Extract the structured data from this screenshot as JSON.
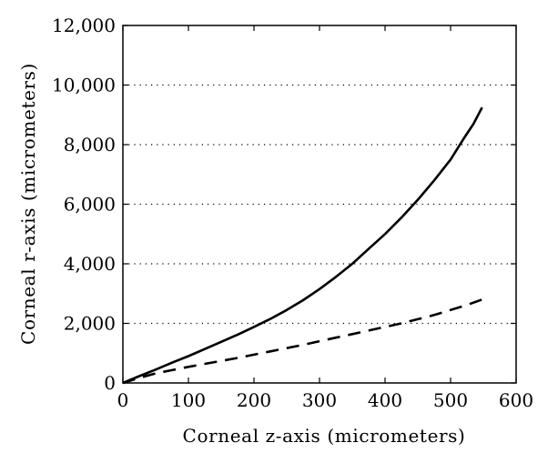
{
  "chart_data": {
    "type": "line",
    "xlabel": "Corneal z-axis (micrometers)",
    "ylabel": "Corneal r-axis (micrometers)",
    "xlim": [
      0,
      600
    ],
    "ylim": [
      0,
      12000
    ],
    "x_ticks": [
      "0",
      "100",
      "200",
      "300",
      "400",
      "500",
      "600"
    ],
    "y_ticks": [
      "0",
      "2,000",
      "4,000",
      "6,000",
      "8,000",
      "10,000",
      "12,000"
    ],
    "grid": "horizontal dotted",
    "legend": "none",
    "series": [
      {
        "style": "solid",
        "color": "#000000",
        "x": [
          0,
          25,
          50,
          75,
          100,
          125,
          150,
          175,
          200,
          225,
          250,
          275,
          300,
          325,
          350,
          375,
          400,
          425,
          450,
          475,
          500,
          520,
          535,
          548
        ],
        "y": [
          0,
          230,
          450,
          680,
          900,
          1140,
          1380,
          1620,
          1880,
          2150,
          2450,
          2780,
          3150,
          3560,
          4000,
          4500,
          5000,
          5550,
          6150,
          6800,
          7500,
          8200,
          8700,
          9250
        ]
      },
      {
        "style": "dashed",
        "color": "#000000",
        "x": [
          0,
          25,
          50,
          75,
          100,
          125,
          150,
          175,
          200,
          225,
          250,
          275,
          300,
          325,
          350,
          375,
          400,
          425,
          450,
          475,
          500,
          525,
          548
        ],
        "y": [
          0,
          170,
          320,
          430,
          540,
          640,
          740,
          840,
          950,
          1060,
          1170,
          1280,
          1400,
          1520,
          1640,
          1760,
          1880,
          2000,
          2140,
          2280,
          2450,
          2620,
          2800
        ]
      }
    ]
  }
}
